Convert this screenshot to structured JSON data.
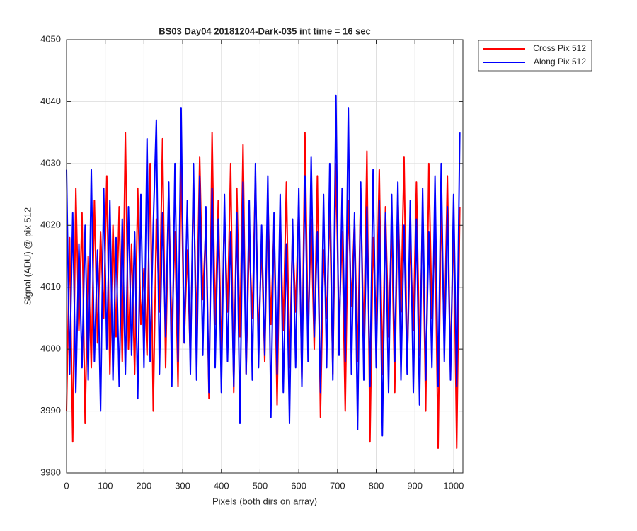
{
  "chart_data": {
    "type": "line",
    "title": "BS03 Day04 20181204-Dark-035 int time = 16 sec",
    "xlabel": "Pixels (both dirs on array)",
    "ylabel": "Signal (ADU) @ pix 512",
    "xlim": [
      0,
      1024
    ],
    "ylim": [
      3980,
      4050
    ],
    "xticks": [
      0,
      100,
      200,
      300,
      400,
      500,
      600,
      700,
      800,
      900,
      1000
    ],
    "yticks": [
      3980,
      3990,
      4000,
      4010,
      4020,
      4030,
      4040,
      4050
    ],
    "grid": true,
    "legend": "northeastoutside",
    "x": [
      0,
      8,
      16,
      24,
      32,
      40,
      48,
      56,
      64,
      72,
      80,
      88,
      96,
      104,
      112,
      120,
      128,
      136,
      144,
      152,
      160,
      168,
      176,
      184,
      192,
      200,
      208,
      216,
      224,
      232,
      240,
      248,
      256,
      264,
      272,
      280,
      288,
      296,
      304,
      312,
      320,
      328,
      336,
      344,
      352,
      360,
      368,
      376,
      384,
      392,
      400,
      408,
      416,
      424,
      432,
      440,
      448,
      456,
      464,
      472,
      480,
      488,
      496,
      504,
      512,
      520,
      528,
      536,
      544,
      552,
      560,
      568,
      576,
      584,
      592,
      600,
      608,
      616,
      624,
      632,
      640,
      648,
      656,
      664,
      672,
      680,
      688,
      696,
      704,
      712,
      720,
      728,
      736,
      744,
      752,
      760,
      768,
      776,
      784,
      792,
      800,
      808,
      816,
      824,
      832,
      840,
      848,
      856,
      864,
      872,
      880,
      888,
      896,
      904,
      912,
      920,
      928,
      936,
      944,
      952,
      960,
      968,
      976,
      984,
      992,
      1000,
      1008,
      1016
    ],
    "series": [
      {
        "name": "Cross Pix 512",
        "color": "#ff0000",
        "values": [
          3990,
          4018,
          3985,
          4026,
          4003,
          4022,
          3988,
          4015,
          3997,
          4024,
          4001,
          4019,
          4005,
          4028,
          3996,
          4020,
          4002,
          4023,
          3998,
          4035,
          4000,
          4017,
          3996,
          4026,
          4004,
          4013,
          3999,
          4030,
          3990,
          4021,
          4006,
          4034,
          3997,
          4025,
          4002,
          4019,
          3994,
          4030,
          4001,
          4016,
          3998,
          4027,
          4003,
          4031,
          4008,
          4020,
          3992,
          4035,
          4004,
          4024,
          3999,
          4022,
          4006,
          4030,
          3993,
          4026,
          4002,
          4033,
          3996,
          4018,
          4005,
          4028,
          4001,
          4017,
          3998,
          4025,
          4004,
          4020,
          3991,
          4022,
          4003,
          4027,
          3997,
          4019,
          4006,
          4024,
          3995,
          4035,
          4002,
          4021,
          4000,
          4028,
          3989,
          4016,
          4005,
          4023,
          3996,
          4030,
          4003,
          4019,
          3990,
          4024,
          4007,
          4021,
          3998,
          4026,
          4001,
          4032,
          3985,
          4018,
          4004,
          4029,
          3996,
          4023,
          4002,
          4020,
          3993,
          4025,
          4006,
          4031,
          3997,
          4018,
          4003,
          4027,
          3999,
          4022,
          3990,
          4030,
          4005,
          4019,
          3984,
          4024,
          4001,
          4028,
          3996,
          4021,
          3984,
          4023
        ]
      },
      {
        "name": "Along Pix 512",
        "color": "#0000ff",
        "values": [
          4029,
          3996,
          4022,
          3993,
          4017,
          3997,
          4020,
          3995,
          4029,
          3998,
          4016,
          3990,
          4026,
          4000,
          4024,
          3995,
          4018,
          3994,
          4021,
          3996,
          4023,
          3999,
          4019,
          3992,
          4025,
          3997,
          4034,
          3998,
          4020,
          4037,
          3996,
          4022,
          4002,
          4027,
          3994,
          4030,
          3998,
          4039,
          4001,
          4024,
          3996,
          4030,
          3995,
          4028,
          3999,
          4023,
          3993,
          4026,
          3997,
          4021,
          3993,
          4025,
          3998,
          4019,
          3994,
          4022,
          3988,
          4027,
          3996,
          4024,
          3995,
          4030,
          3997,
          4020,
          3999,
          4028,
          3989,
          4022,
          3996,
          4025,
          3993,
          4017,
          3988,
          4021,
          3997,
          4026,
          3994,
          4028,
          3998,
          4031,
          4002,
          4019,
          3993,
          4025,
          3997,
          4030,
          3995,
          4041,
          3999,
          4026,
          3998,
          4039,
          3996,
          4022,
          3987,
          4027,
          3995,
          4023,
          3994,
          4029,
          3997,
          4024,
          3986,
          4022,
          3993,
          4025,
          3998,
          4027,
          3995,
          4020,
          3996,
          4024,
          3993,
          4021,
          3991,
          4026,
          3995,
          4019,
          3997,
          4028,
          3994,
          4030,
          3998,
          4023,
          3995,
          4025,
          3994,
          4035
        ]
      }
    ]
  }
}
